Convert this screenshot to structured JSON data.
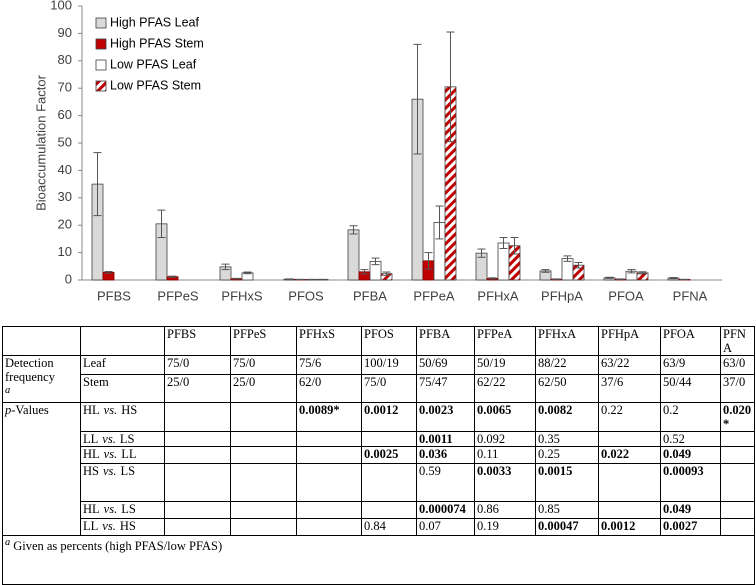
{
  "chart_data": {
    "type": "bar",
    "y_label": "Bioaccumulation Factor",
    "categories": [
      "PFBS",
      "PFPeS",
      "PFHxS",
      "PFOS",
      "PFBA",
      "PFPeA",
      "PFHxA",
      "PFHpA",
      "PFOA",
      "PFNA"
    ],
    "ylim": [
      0,
      100
    ],
    "yticks": [
      0,
      10,
      20,
      30,
      40,
      50,
      60,
      70,
      80,
      90,
      100
    ],
    "legend": "top-left",
    "series": [
      {
        "name": "High PFAS Leaf",
        "color": "#d9d9d9",
        "values": [
          35,
          20.5,
          4.8,
          0.3,
          18.3,
          66,
          9.8,
          3.3,
          0.8,
          0.7
        ],
        "errors": [
          11.5,
          5,
          1,
          0.1,
          1.5,
          20,
          1.5,
          0.5,
          0.2,
          0.2
        ]
      },
      {
        "name": "High PFAS Stem",
        "color": "#c00000",
        "values": [
          2.8,
          1.2,
          0.5,
          0.2,
          3,
          7,
          0.6,
          0.3,
          0.3,
          0.2
        ],
        "errors": [
          0.3,
          0.2,
          0.1,
          0.05,
          0.8,
          3,
          0.2,
          0.1,
          0.1,
          0.05
        ]
      },
      {
        "name": "Low PFAS Leaf",
        "color": "#ffffff",
        "values": [
          null,
          null,
          2.6,
          0.2,
          6.8,
          21,
          13.5,
          7.8,
          3.2,
          null
        ],
        "errors": [
          null,
          null,
          0.3,
          0.05,
          1.2,
          6,
          2,
          1,
          0.6,
          null
        ]
      },
      {
        "name": "Low PFAS Stem",
        "color": "#c00000",
        "hatch": true,
        "values": [
          null,
          null,
          null,
          0.2,
          2.3,
          70.5,
          12.5,
          5.4,
          2.6,
          null
        ],
        "errors": [
          null,
          null,
          null,
          0.05,
          0.6,
          20,
          3,
          1,
          0.4,
          null
        ]
      }
    ]
  },
  "table": {
    "columns": [
      "PFBS",
      "PFPeS",
      "PFHxS",
      "PFOS",
      "PFBA",
      "PFPeA",
      "PFHxA",
      "PFHpA",
      "PFOA",
      "PFNA"
    ],
    "groups": [
      {
        "label": [
          "Detection frequency"
        ],
        "note": "a",
        "rows": [
          {
            "label": [
              "Leaf"
            ],
            "cells": [
              "75/0",
              "75/0",
              "75/6",
              "100/19",
              "50/69",
              "50/19",
              "88/22",
              "63/22",
              "63/9",
              "63/0"
            ],
            "bold": []
          },
          {
            "label": [
              "Stem"
            ],
            "cells": [
              "25/0",
              "25/0",
              "62/0",
              "75/0",
              "75/47",
              "62/22",
              "62/50",
              "37/6",
              "50/44",
              "37/0"
            ],
            "bold": []
          }
        ]
      },
      {
        "label": [
          "p",
          "-Values"
        ],
        "rows": [
          {
            "label": [
              "HL",
              "vs.",
              "HS"
            ],
            "cells": [
              null,
              null,
              "0.0089*",
              "0.0012",
              "0.0023",
              "0.0065",
              "0.0082",
              "0.22",
              "0.2",
              "0.020*"
            ],
            "bold": [
              2,
              3,
              4,
              5,
              6,
              9
            ]
          },
          {
            "label": [
              "LL",
              "vs.",
              "LS"
            ],
            "cells": [
              null,
              null,
              null,
              null,
              "0.0011",
              "0.092",
              "0.35",
              null,
              "0.52",
              null
            ],
            "bold": [
              4
            ]
          },
          {
            "label": [
              "HL",
              "vs.",
              "LL"
            ],
            "cells": [
              null,
              null,
              null,
              "0.0025",
              "0.036",
              "0.11",
              "0.25",
              "0.022",
              "0.049",
              null
            ],
            "bold": [
              3,
              4,
              7,
              8
            ]
          },
          {
            "label": [
              "HS",
              "vs.",
              "LS"
            ],
            "cells": [
              null,
              null,
              null,
              null,
              "0.59",
              "0.0033",
              "0.0015",
              null,
              "0.00093",
              null
            ],
            "bold": [
              5,
              6,
              8
            ]
          },
          {
            "label": [
              "HL",
              "vs.",
              "LS"
            ],
            "cells": [
              null,
              null,
              null,
              null,
              "0.000074",
              "0.86",
              "0.85",
              null,
              "0.049",
              null
            ],
            "bold": [
              4,
              8
            ]
          },
          {
            "label": [
              "LL",
              "vs.",
              "HS"
            ],
            "cells": [
              null,
              null,
              null,
              "0.84",
              "0.07",
              "0.19",
              "0.00047",
              "0.0012",
              "0.0027",
              null
            ],
            "bold": [
              6,
              7,
              8
            ]
          }
        ]
      }
    ],
    "footnote": {
      "mark": "a",
      "text": "Given as percents (high PFAS/low PFAS)"
    }
  }
}
